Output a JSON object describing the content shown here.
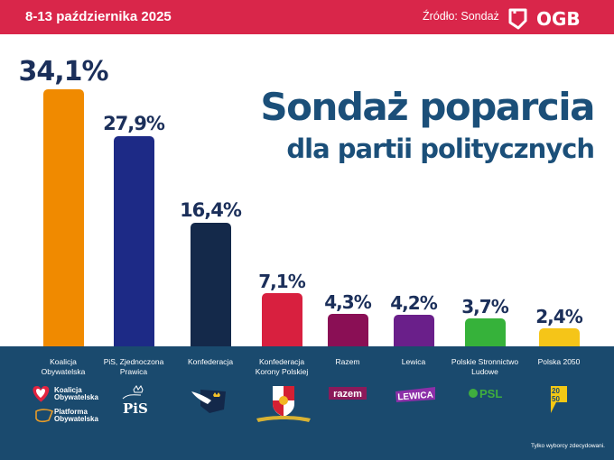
{
  "header": {
    "date": "8-13 października 2025",
    "source": "Źródło: Sondaż",
    "brand": "OGB"
  },
  "title": {
    "line1": "Sondaż poparcia",
    "line2": "dla partii politycznych"
  },
  "footnote": "Tylko wyborcy zdecydowani.",
  "colors": {
    "header_bg": "#d9264a",
    "title": "#1b4f79",
    "band_bg": "#1a4a6e",
    "value_text": "#1b2f5a"
  },
  "chart_data": {
    "type": "bar",
    "title": "Sondaż poparcia dla partii politycznych",
    "xlabel": "",
    "ylabel": "",
    "ylim": [
      0,
      35
    ],
    "grid": false,
    "categories": [
      "Koalicja Obywatelska",
      "PiS, Zjednoczona Prawica",
      "Konfederacja",
      "Konfederacja Korony Polskiej",
      "Razem",
      "Lewica",
      "Polskie Stronnictwo Ludowe",
      "Polska 2050"
    ],
    "category_lines": [
      [
        "Koalicja",
        "Obywatelska"
      ],
      [
        "PiS, Zjednoczona",
        "Prawica"
      ],
      [
        "Konfederacja"
      ],
      [
        "Konfederacja",
        "Korony Polskiej"
      ],
      [
        "Razem"
      ],
      [
        "Lewica"
      ],
      [
        "Polskie Stronnictwo",
        "Ludowe"
      ],
      [
        "Polska 2050"
      ]
    ],
    "values": [
      34.1,
      27.9,
      16.4,
      7.1,
      4.3,
      4.2,
      3.7,
      2.4
    ],
    "labels": [
      "34,1%",
      "27,9%",
      "16,4%",
      "7,1%",
      "4,3%",
      "4,2%",
      "3,7%",
      "2,4%"
    ],
    "colors": [
      "#f08a00",
      "#1d2a86",
      "#14294a",
      "#d8203f",
      "#8a0f55",
      "#6a1f8a",
      "#36b23a",
      "#f5c518"
    ],
    "logos": [
      "ko-po-logo",
      "pis-logo",
      "konfederacja-logo",
      "kkp-logo",
      "razem-logo",
      "lewica-logo",
      "psl-logo",
      "polska2050-logo"
    ]
  },
  "logos_text": {
    "ko1": "Koalicja",
    "ko2": "Obywatelska",
    "po1": "Platforma",
    "po2": "Obywatelska",
    "pis": "PiS",
    "razem": "razem",
    "lewica": "LEWICA",
    "psl": "PSL",
    "p2050a": "20",
    "p2050b": "50"
  }
}
